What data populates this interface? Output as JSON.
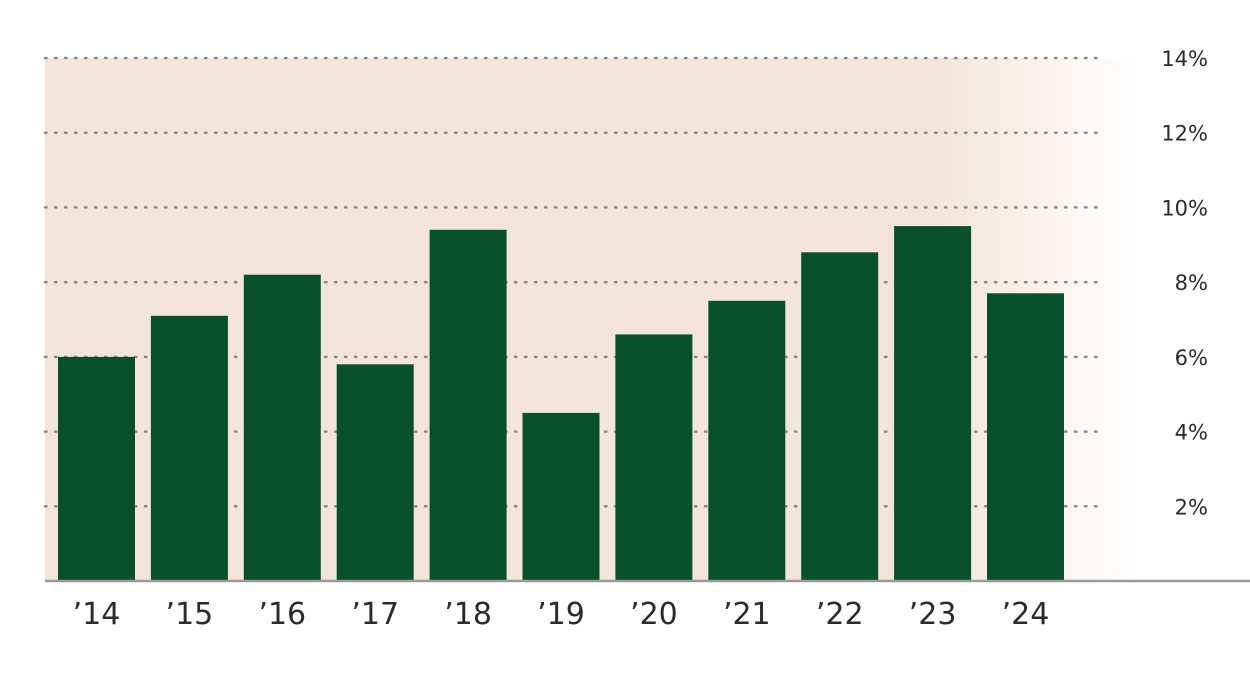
{
  "chart_data": {
    "type": "bar",
    "categories": [
      "’14",
      "’15",
      "’16",
      "’17",
      "’18",
      "’19",
      "’20",
      "’21",
      "’22",
      "’23",
      "’24"
    ],
    "values": [
      6.0,
      7.1,
      8.2,
      5.8,
      9.4,
      4.5,
      6.6,
      7.5,
      8.8,
      9.5,
      7.7
    ],
    "title": "",
    "xlabel": "",
    "ylabel": "",
    "ylim": [
      0,
      14
    ],
    "yticks": [
      2,
      4,
      6,
      8,
      10,
      12,
      14
    ],
    "ytick_labels": [
      "2%",
      "4%",
      "6%",
      "8%",
      "10%",
      "12%",
      "14%"
    ],
    "y_axis_side": "right",
    "grid": "horizontal dotted",
    "legend": "none",
    "colors": {
      "bar": "#07502b",
      "background_band": "#f3e5d9",
      "grid": "#8a8a8a",
      "axis": "#9a9a9a",
      "text": "#2b2b2b"
    }
  }
}
